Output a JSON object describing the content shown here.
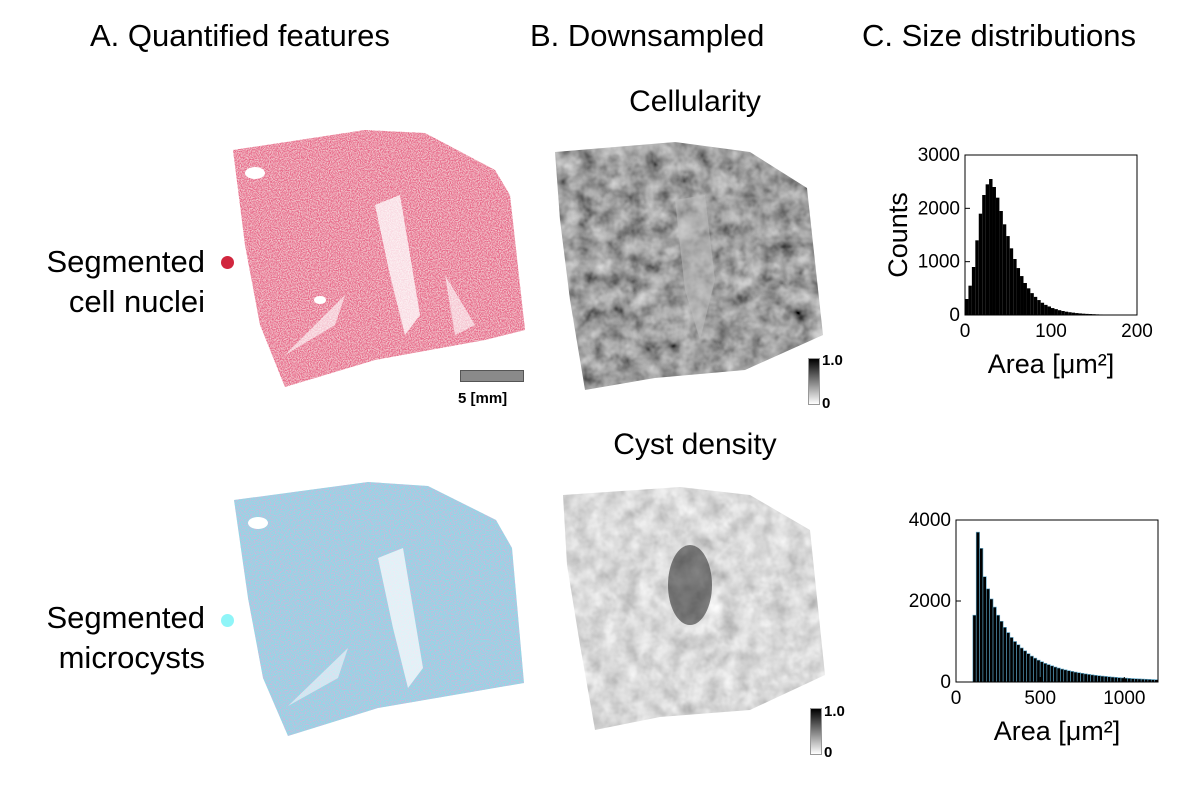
{
  "headers": {
    "a": "A. Quantified features",
    "b": "B. Downsampled",
    "c": "C. Size distributions"
  },
  "rows": [
    {
      "label_line1": "Segmented",
      "label_line2": "cell nuclei",
      "dot_color": "#d1263e",
      "map_title": "Cellularity",
      "cbar_max": "1.0",
      "cbar_min": "0"
    },
    {
      "label_line1": "Segmented",
      "label_line2": "microcysts",
      "dot_color": "#8ff5f8",
      "map_title": "Cyst density",
      "cbar_max": "1.0",
      "cbar_min": "0"
    }
  ],
  "scale_bar": {
    "label": "5 [mm]"
  },
  "colors": {
    "nuclei": "#c8203c",
    "cyst": "#7fd8e6",
    "hist_fill": "#000000",
    "cyst_bar_edge": "#5ca6c8"
  },
  "chart_data": [
    {
      "type": "bar",
      "title": "",
      "xlabel": "Area [μm²]",
      "ylabel": "Counts",
      "xlim": [
        0,
        200
      ],
      "ylim": [
        0,
        3000
      ],
      "xticks": [
        "0",
        "100",
        "200"
      ],
      "yticks": [
        "0",
        "1000",
        "2000",
        "3000"
      ],
      "x": [
        2,
        6,
        10,
        14,
        18,
        22,
        26,
        30,
        34,
        38,
        42,
        46,
        50,
        54,
        58,
        62,
        66,
        70,
        74,
        78,
        82,
        86,
        90,
        94,
        98,
        102,
        106,
        110,
        114,
        118,
        122,
        126,
        130,
        134,
        138,
        142,
        146,
        150,
        154,
        158,
        162,
        166,
        170,
        174,
        178,
        182,
        186,
        190,
        194,
        198
      ],
      "values": [
        300,
        550,
        900,
        1400,
        1900,
        2250,
        2450,
        2550,
        2400,
        2200,
        1950,
        1700,
        1480,
        1250,
        1050,
        880,
        730,
        600,
        500,
        410,
        340,
        280,
        230,
        190,
        160,
        130,
        110,
        90,
        75,
        62,
        52,
        44,
        36,
        30,
        25,
        21,
        18,
        15,
        12,
        10,
        9,
        8,
        7,
        6,
        5,
        4,
        4,
        3,
        3,
        2
      ]
    },
    {
      "type": "bar",
      "title": "",
      "xlabel": "Area [μm²]",
      "ylabel": "",
      "xlim": [
        0,
        1200
      ],
      "ylim": [
        0,
        4000
      ],
      "xticks": [
        "0",
        "500",
        "1000"
      ],
      "yticks": [
        "0",
        "2000",
        "4000"
      ],
      "x": [
        110,
        130,
        150,
        170,
        190,
        210,
        230,
        250,
        270,
        290,
        310,
        330,
        350,
        370,
        390,
        410,
        430,
        450,
        470,
        490,
        510,
        530,
        550,
        570,
        590,
        610,
        630,
        650,
        670,
        690,
        710,
        730,
        750,
        770,
        790,
        810,
        830,
        850,
        870,
        890,
        910,
        930,
        950,
        970,
        990,
        1010,
        1030,
        1050,
        1070,
        1090,
        1110,
        1130,
        1150,
        1170,
        1190
      ],
      "values": [
        1650,
        3700,
        3300,
        2600,
        2300,
        2050,
        1850,
        1650,
        1500,
        1350,
        1220,
        1100,
        1000,
        920,
        840,
        770,
        700,
        640,
        590,
        540,
        500,
        460,
        430,
        400,
        370,
        345,
        320,
        300,
        280,
        262,
        245,
        230,
        215,
        200,
        188,
        176,
        165,
        155,
        146,
        138,
        130,
        122,
        115,
        108,
        102,
        96,
        90,
        85,
        80,
        76,
        72,
        68,
        64,
        60,
        57
      ]
    }
  ]
}
